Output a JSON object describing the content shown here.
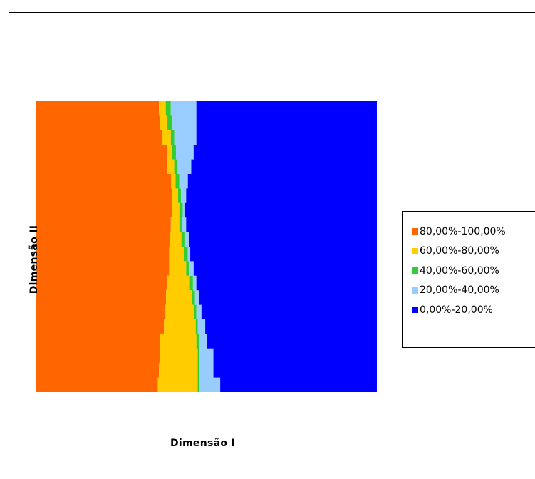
{
  "chart_data": {
    "type": "area",
    "title": "",
    "xlabel": "Dimensão I",
    "ylabel": "Dimensão II",
    "legend_position": "right",
    "grid": false,
    "series": [
      {
        "name": "80,00%-100,00%",
        "color": "#FF6600",
        "boundary": [
          0.36,
          0.362,
          0.37,
          0.383,
          0.385,
          0.396,
          0.398,
          0.399,
          0.395,
          0.392,
          0.39,
          0.39,
          0.385,
          0.381,
          0.378,
          0.375,
          0.362,
          0.362,
          0.36,
          0.357
        ]
      },
      {
        "name": "60,00%-80,00%",
        "color": "#FFCC00",
        "boundary": [
          0.38,
          0.385,
          0.395,
          0.398,
          0.405,
          0.409,
          0.416,
          0.42,
          0.42,
          0.426,
          0.433,
          0.44,
          0.451,
          0.456,
          0.462,
          0.468,
          0.47,
          0.474,
          0.474,
          0.474
        ]
      },
      {
        "name": "40,00%-60,00%",
        "color": "#33CC33",
        "boundary": [
          0.395,
          0.4,
          0.405,
          0.41,
          0.415,
          0.42,
          0.425,
          0.43,
          0.428,
          0.435,
          0.445,
          0.45,
          0.46,
          0.466,
          0.47,
          0.474,
          0.478,
          0.478,
          0.478,
          0.478
        ]
      },
      {
        "name": "20,00%-40,00%",
        "color": "#99CCFF",
        "boundary": [
          0.47,
          0.47,
          0.47,
          0.462,
          0.455,
          0.445,
          0.44,
          0.435,
          0.44,
          0.448,
          0.452,
          0.462,
          0.47,
          0.478,
          0.485,
          0.496,
          0.5,
          0.52,
          0.52,
          0.54
        ]
      },
      {
        "name": "0,00%-20,00%",
        "color": "#0000FF",
        "boundary": [
          1,
          1,
          1,
          1,
          1,
          1,
          1,
          1,
          1,
          1,
          1,
          1,
          1,
          1,
          1,
          1,
          1,
          1,
          1,
          1
        ]
      }
    ]
  }
}
